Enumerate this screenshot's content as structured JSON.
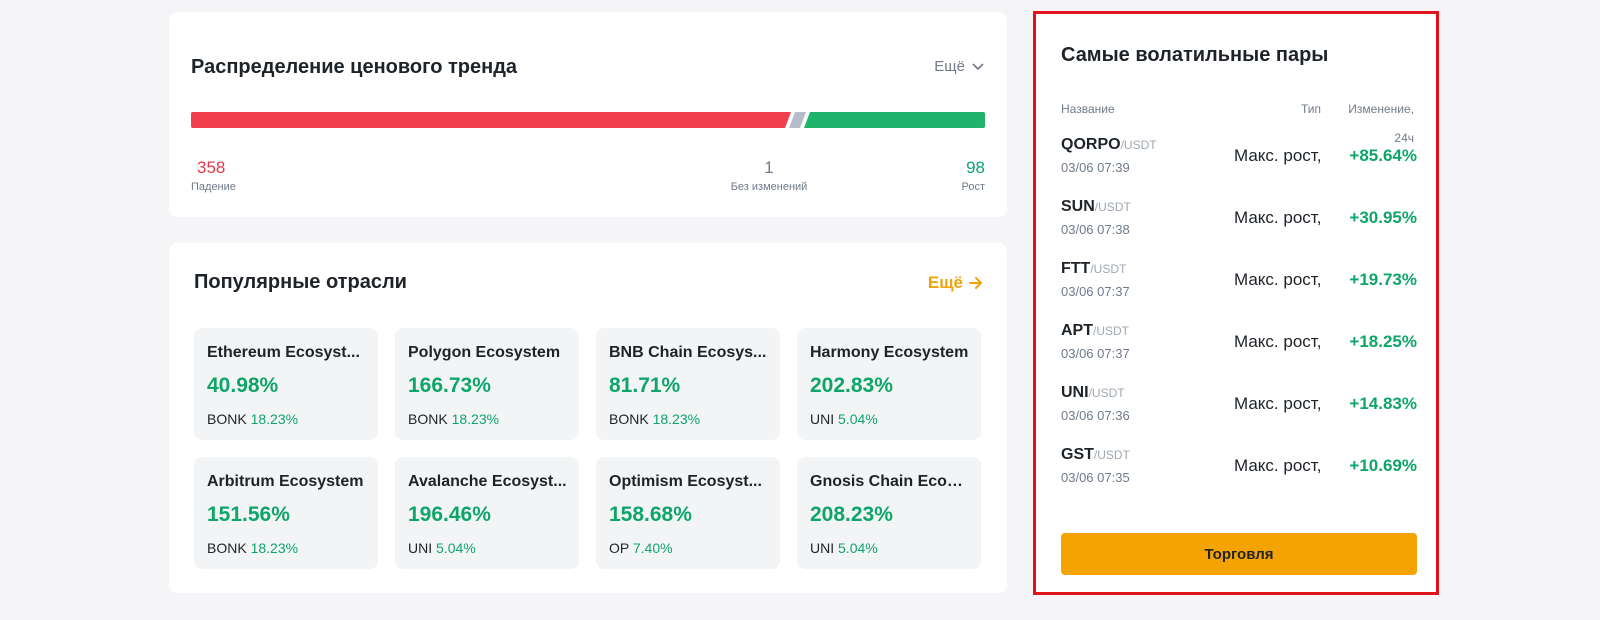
{
  "trend": {
    "title": "Распределение ценового тренда",
    "more_label": "Ещё",
    "down_count": "358",
    "down_label": "Падение",
    "flat_count": "1",
    "flat_label": "Без изменений",
    "up_count": "98",
    "up_label": "Рост",
    "colors": {
      "down": "#f04050",
      "flat": "#b7bdc6",
      "up": "#1fb36b"
    }
  },
  "sectors": {
    "title": "Популярные отрасли",
    "more_label": "Ещё",
    "items": [
      {
        "name": "Ethereum Ecosyst...",
        "pct": "40.98%",
        "coin": "BONK",
        "coin_pct": "18.23%"
      },
      {
        "name": "Polygon Ecosystem",
        "pct": "166.73%",
        "coin": "BONK",
        "coin_pct": "18.23%"
      },
      {
        "name": "BNB Chain Ecosys...",
        "pct": "81.71%",
        "coin": "BONK",
        "coin_pct": "18.23%"
      },
      {
        "name": "Harmony Ecosystem",
        "pct": "202.83%",
        "coin": "UNI",
        "coin_pct": "5.04%"
      },
      {
        "name": "Arbitrum Ecosystem",
        "pct": "151.56%",
        "coin": "BONK",
        "coin_pct": "18.23%"
      },
      {
        "name": "Avalanche Ecosyst...",
        "pct": "196.46%",
        "coin": "UNI",
        "coin_pct": "5.04%"
      },
      {
        "name": "Optimism Ecosyst...",
        "pct": "158.68%",
        "coin": "OP",
        "coin_pct": "7.40%"
      },
      {
        "name": "Gnosis Chain Ecos...",
        "pct": "208.23%",
        "coin": "UNI",
        "coin_pct": "5.04%"
      }
    ]
  },
  "volatile": {
    "title": "Самые волатильные пары",
    "col_name": "Название",
    "col_type": "Тип",
    "col_change": "Изменение,",
    "col_change_period": "24ч",
    "rows": [
      {
        "base": "QORPO",
        "quote": "/USDT",
        "time": "03/06 07:39",
        "type": "Макс. рост,",
        "change": "+85.64%"
      },
      {
        "base": "SUN",
        "quote": "/USDT",
        "time": "03/06 07:38",
        "type": "Макс. рост,",
        "change": "+30.95%"
      },
      {
        "base": "FTT",
        "quote": "/USDT",
        "time": "03/06 07:37",
        "type": "Макс. рост,",
        "change": "+19.73%"
      },
      {
        "base": "APT",
        "quote": "/USDT",
        "time": "03/06 07:37",
        "type": "Макс. рост,",
        "change": "+18.25%"
      },
      {
        "base": "UNI",
        "quote": "/USDT",
        "time": "03/06 07:36",
        "type": "Макс. рост,",
        "change": "+14.83%"
      },
      {
        "base": "GST",
        "quote": "/USDT",
        "time": "03/06 07:35",
        "type": "Макс. рост,",
        "change": "+10.69%"
      }
    ],
    "trade_label": "Торговля",
    "highlight_color": "#e1131b",
    "accent": "#f5a300"
  }
}
